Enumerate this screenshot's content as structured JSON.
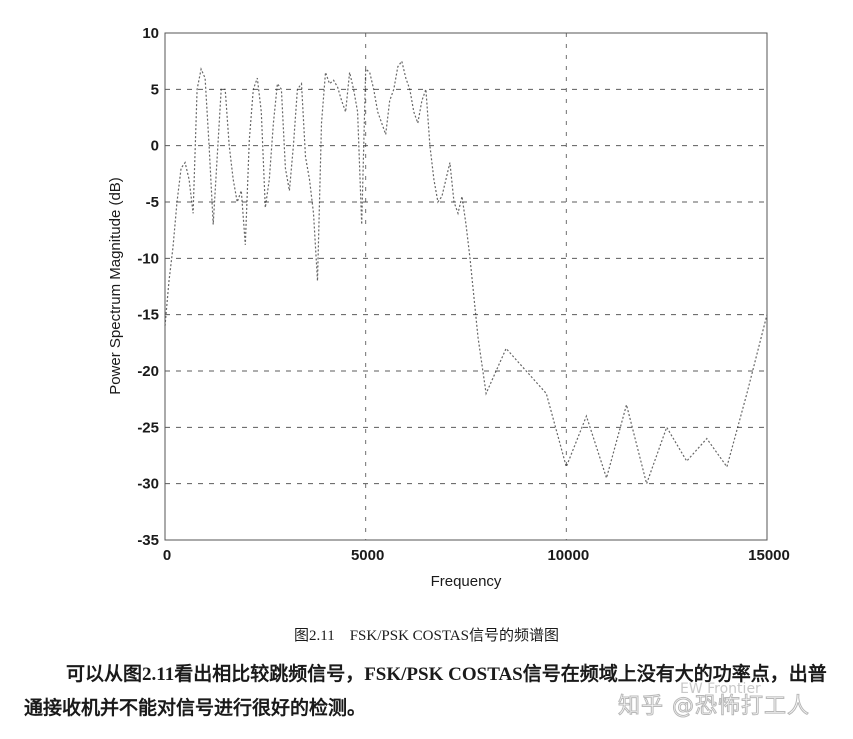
{
  "chart_data": {
    "type": "line",
    "title": "",
    "xlabel": "Frequency",
    "ylabel": "Power Spectrum Magnitude (dB)",
    "xlim": [
      0,
      15000
    ],
    "ylim": [
      -35,
      10
    ],
    "xticks": [
      0,
      5000,
      10000,
      15000
    ],
    "yticks": [
      10,
      5,
      0,
      -5,
      -10,
      -15,
      -20,
      -25,
      -30,
      -35
    ],
    "grid": true,
    "legend": null,
    "series": [
      {
        "name": "FSK/PSK COSTAS spectrum",
        "x": [
          0,
          100,
          200,
          300,
          400,
          500,
          600,
          700,
          800,
          900,
          1000,
          1100,
          1200,
          1300,
          1400,
          1500,
          1600,
          1700,
          1800,
          1900,
          2000,
          2100,
          2200,
          2300,
          2400,
          2500,
          2600,
          2700,
          2800,
          2900,
          3000,
          3100,
          3200,
          3300,
          3400,
          3500,
          3600,
          3700,
          3800,
          3900,
          4000,
          4100,
          4200,
          4300,
          4400,
          4500,
          4600,
          4700,
          4800,
          4900,
          5000,
          5100,
          5200,
          5300,
          5400,
          5500,
          5600,
          5700,
          5800,
          5900,
          6000,
          6100,
          6200,
          6300,
          6400,
          6500,
          6600,
          6700,
          6800,
          6900,
          7000,
          7100,
          7200,
          7300,
          7400,
          7500,
          7600,
          7800,
          8000,
          8500,
          9000,
          9500,
          10000,
          10500,
          11000,
          11500,
          12000,
          12500,
          13000,
          13500,
          14000,
          14500,
          15000
        ],
        "values": [
          -16,
          -12,
          -9,
          -5,
          -2,
          -1.5,
          -3,
          -6,
          5,
          6.8,
          6,
          0,
          -7,
          -1,
          5,
          5,
          0,
          -3,
          -5,
          -4,
          -8.8,
          0.5,
          5,
          6,
          3,
          -5.5,
          -3,
          2,
          5.5,
          5,
          -2,
          -4,
          0,
          5,
          5.5,
          -1,
          -3,
          -6,
          -12,
          2,
          6.5,
          5.5,
          5.8,
          5.2,
          4,
          3,
          6.5,
          5,
          3,
          -7,
          6.8,
          6.5,
          5,
          3,
          2,
          1,
          4,
          5,
          7,
          7.5,
          6,
          5,
          3,
          2,
          4,
          5,
          0,
          -3,
          -5,
          -4.5,
          -3,
          -1.5,
          -5,
          -6,
          -4.5,
          -7,
          -10,
          -17,
          -22,
          -18,
          -20,
          -22,
          -28.5,
          -24,
          -29.5,
          -23,
          -30,
          -25,
          -28,
          -26,
          -28.5,
          -22,
          -15
        ]
      }
    ]
  },
  "caption": {
    "text": "图2.11　FSK/PSK COSTAS信号的频谱图"
  },
  "body_text": {
    "paragraph": "可以从图2.11看出相比较跳频信号，FSK/PSK COSTAS信号在频域上没有大的功率点，出普通接收机并不能对信号进行很好的检测。"
  },
  "watermark": {
    "main": "知乎 @恐怖打工人",
    "sub": "EW Frontier"
  },
  "colors": {
    "trace": "#333333",
    "grid": "#333333",
    "axis": "#222222",
    "background": "#ffffff"
  }
}
